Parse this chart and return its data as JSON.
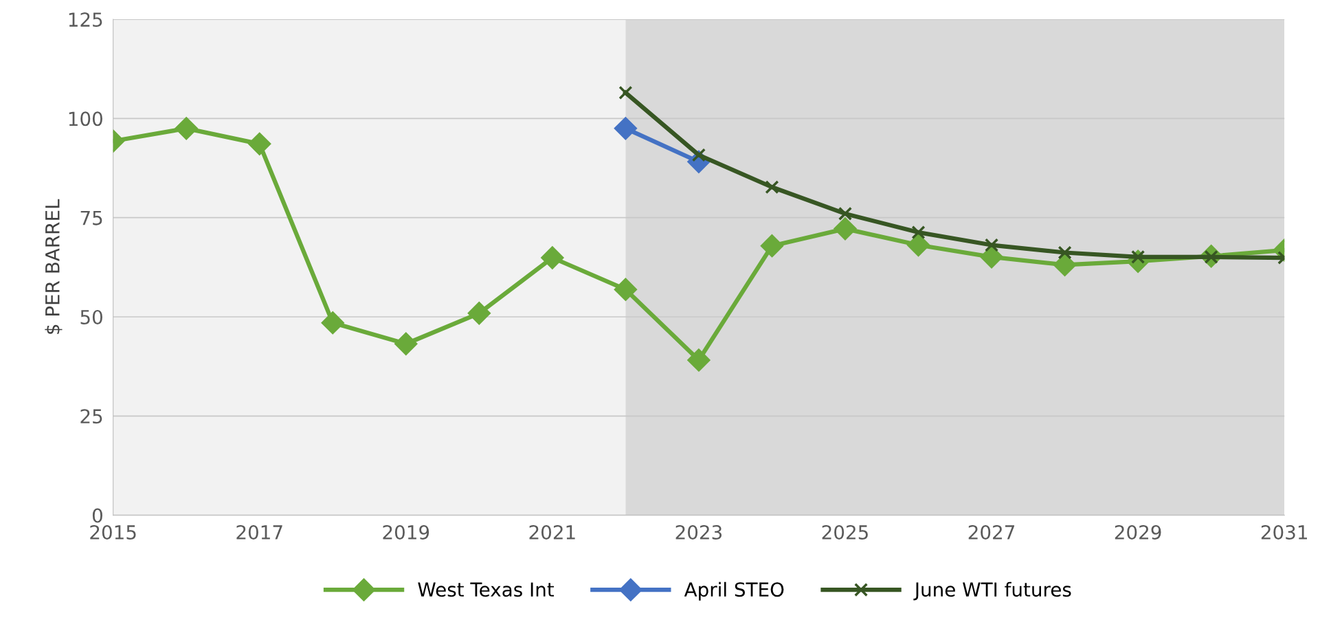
{
  "chart_data": {
    "type": "line",
    "ylabel": "$ PER BARREL",
    "x": [
      2015,
      2016,
      2017,
      2018,
      2019,
      2020,
      2021,
      2022,
      2023,
      2024,
      2025,
      2026,
      2027,
      2028,
      2029,
      2030,
      2031
    ],
    "series": [
      {
        "name": "West Texas Int",
        "color": "#6aaa3a",
        "marker": "diamond",
        "values": [
          94.3,
          97.5,
          93.6,
          48.5,
          43.2,
          50.9,
          64.9,
          56.9,
          39.1,
          67.9,
          72.2,
          68.1,
          65.1,
          63.1,
          64.0,
          65.3,
          66.8
        ]
      },
      {
        "name": "April STEO",
        "color": "#4472c4",
        "marker": "diamond",
        "x": [
          2022,
          2023
        ],
        "values": [
          97.5,
          89.1
        ]
      },
      {
        "name": "June WTI futures",
        "color": "#375623",
        "marker": "cross",
        "x": [
          2022,
          2023,
          2024,
          2025,
          2026,
          2027,
          2028,
          2029,
          2030,
          2031
        ],
        "values": [
          106.5,
          90.8,
          82.7,
          76.0,
          71.3,
          68.1,
          66.2,
          65.1,
          65.1,
          64.9
        ]
      }
    ],
    "bands": [
      {
        "axis": "x",
        "from": 2015,
        "to": 2022,
        "color": "#f2f2f2"
      },
      {
        "axis": "x",
        "from": 2022,
        "to": 2031,
        "color": "#d9d9d9"
      }
    ],
    "xlim": [
      2015,
      2031
    ],
    "xticks": [
      2015,
      2017,
      2019,
      2021,
      2023,
      2025,
      2027,
      2029,
      2031
    ],
    "ylim": [
      0,
      125
    ],
    "yticks": [
      0,
      25,
      50,
      75,
      100,
      125
    ],
    "grid": "y",
    "legend": "bottom",
    "line_style": "solid"
  }
}
